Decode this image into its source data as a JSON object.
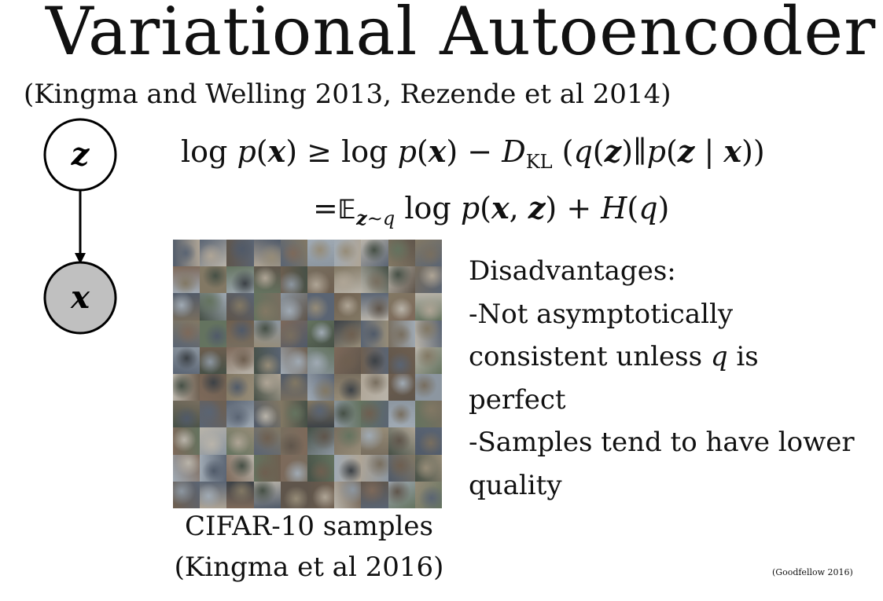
{
  "slide": {
    "title": "Variational Autoencoder",
    "subtitle": "(Kingma and Welling 2013, Rezende et al 2014)",
    "graph": {
      "latent_node_label": "z",
      "observed_node_label": "x",
      "observed_node_fill": "#c0c0c0"
    },
    "equation": {
      "line1": {
        "log": "log",
        "p": "p",
        "x": "x",
        "geq": "≥",
        "minus": "−",
        "D": "D",
        "KL": "KL",
        "q": "q",
        "z": "z",
        "bar": "|",
        "dbar": "∥"
      },
      "line2": {
        "eq": "=",
        "E": "𝔼",
        "sub_z": "z",
        "sub_sim_q": "∼q",
        "log": "log",
        "p": "p",
        "x": "x",
        "z": "z",
        "plus": "+",
        "H": "H",
        "q": "q"
      }
    },
    "samples": {
      "caption_line1": "CIFAR-10 samples",
      "caption_line2": "(Kingma et al 2016)"
    },
    "disadvantages": {
      "heading": "Disadvantages:",
      "line1": "-Not asymptotically",
      "line2_pre": "consistent unless ",
      "line2_var": "q",
      "line2_post": " is",
      "line3": "perfect",
      "line4": "-Samples tend to have lower",
      "line5": "quality"
    },
    "credit": "(Goodfellow 2016)"
  }
}
